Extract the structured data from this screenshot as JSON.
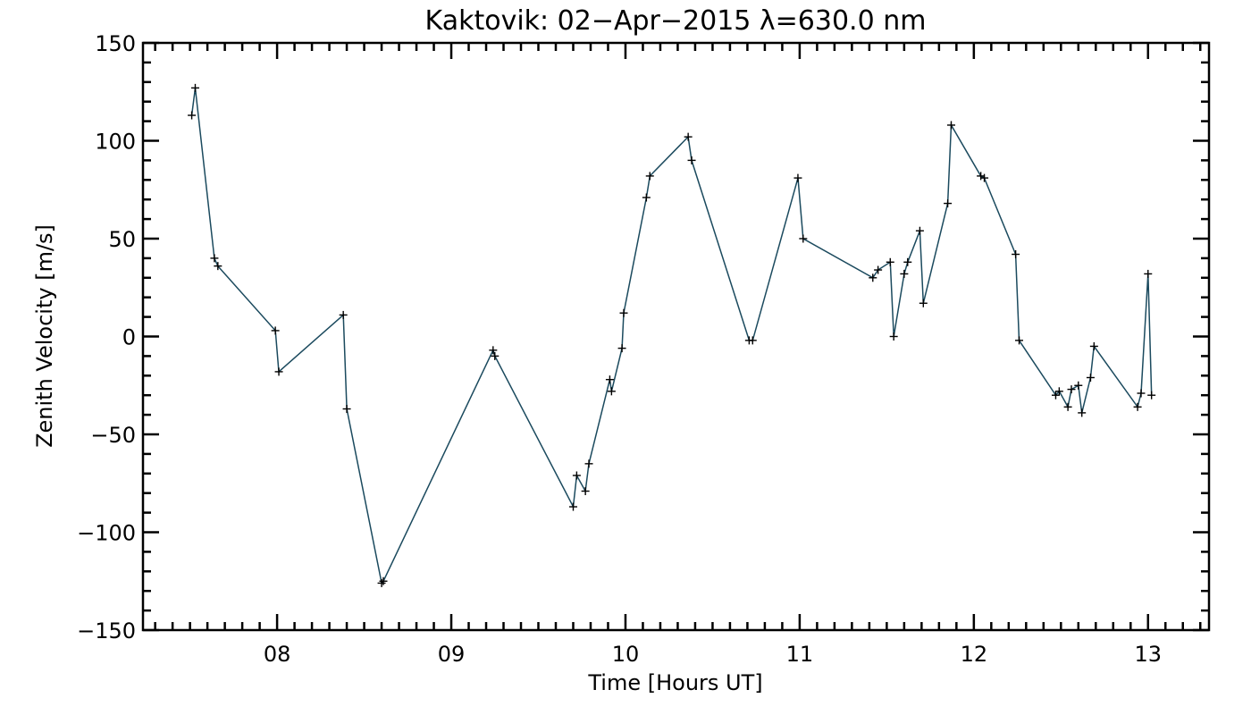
{
  "chart_data": {
    "type": "line",
    "title": "Kaktovik: 02−Apr−2015 λ=630.0 nm",
    "xlabel": "Time [Hours UT]",
    "ylabel": "Zenith Velocity [m/s]",
    "xlim": [
      7.23,
      13.35
    ],
    "ylim": [
      -150,
      150
    ],
    "x_ticks": [
      8,
      9,
      10,
      11,
      12,
      13
    ],
    "x_tick_labels": [
      "08",
      "09",
      "10",
      "11",
      "12",
      "13"
    ],
    "y_ticks": [
      -150,
      -100,
      -50,
      0,
      50,
      100,
      150
    ],
    "y_tick_labels": [
      "−150",
      "−100",
      "−50",
      "0",
      "50",
      "100",
      "150"
    ],
    "grid": false,
    "line_color": "#1b4a5e",
    "marker": "plus",
    "series": [
      {
        "x": [
          7.51,
          7.53,
          7.64,
          7.66,
          7.99,
          8.01,
          8.38,
          8.4,
          8.6,
          8.61,
          9.24,
          9.25,
          9.7,
          9.72,
          9.77,
          9.79,
          9.91,
          9.92,
          9.98,
          9.99,
          10.12,
          10.14,
          10.36,
          10.38,
          10.71,
          10.73,
          10.99,
          11.02,
          11.42,
          11.45,
          11.52,
          11.54,
          11.6,
          11.62,
          11.69,
          11.71,
          11.85,
          11.87,
          12.04,
          12.06,
          12.24,
          12.26,
          12.47,
          12.49,
          12.54,
          12.56,
          12.6,
          12.62,
          12.67,
          12.69,
          12.94,
          12.96,
          13.0,
          13.02
        ],
        "y": [
          113,
          127,
          40,
          36,
          3,
          -18,
          11,
          -37,
          -126,
          -125,
          -7,
          -10,
          -87,
          -71,
          -79,
          -65,
          -22,
          -28,
          -6,
          12,
          71,
          82,
          102,
          90,
          -2,
          -2,
          81,
          50,
          30,
          34,
          38,
          0,
          32,
          38,
          54,
          17,
          68,
          108,
          82,
          81,
          42,
          -2,
          -30,
          -28,
          -36,
          -27,
          -25,
          -39,
          -21,
          -5,
          -36,
          -29,
          32,
          -30
        ]
      }
    ]
  }
}
